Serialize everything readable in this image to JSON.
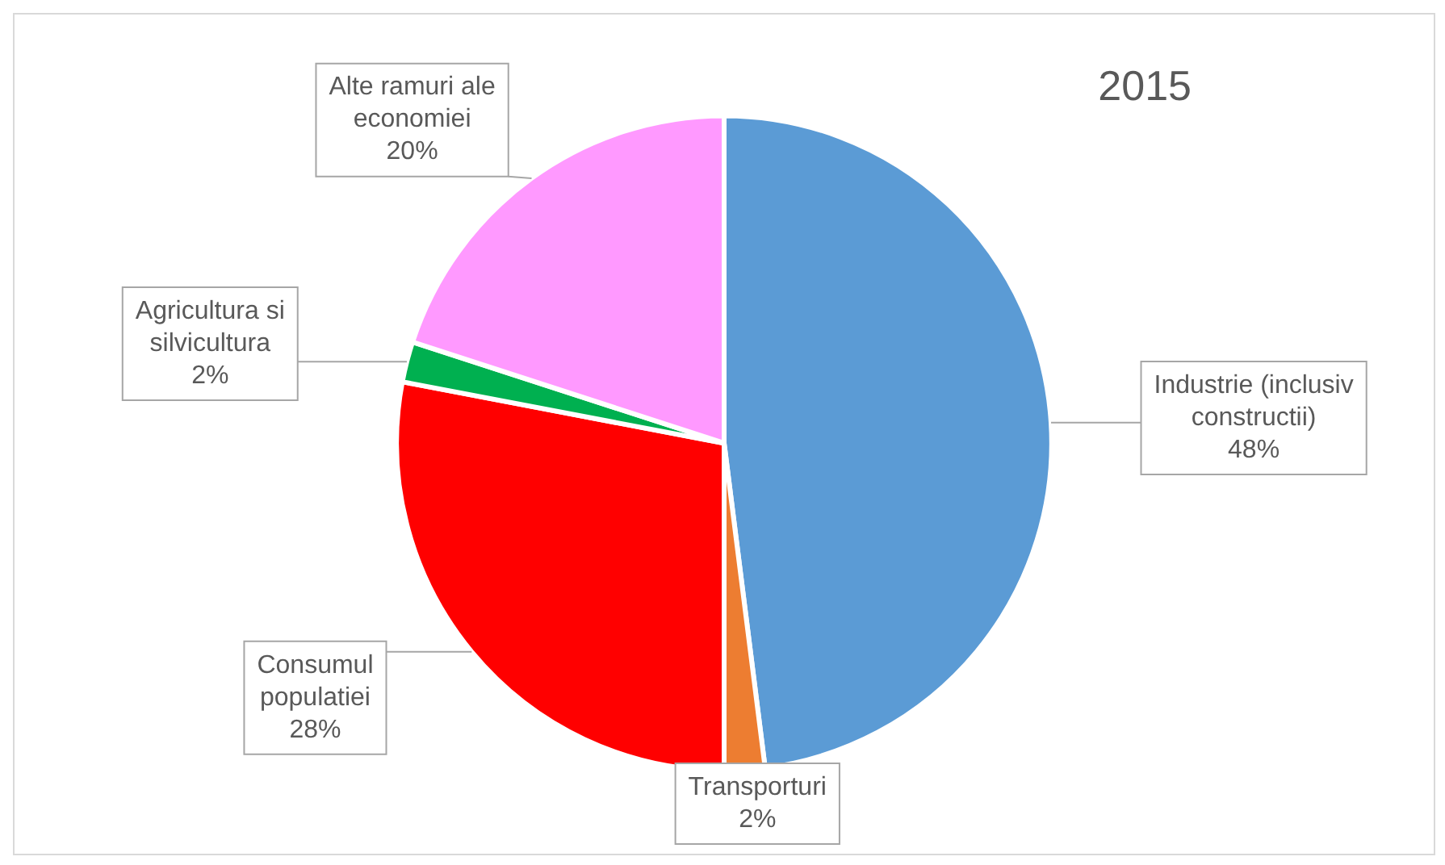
{
  "chart_data": {
    "type": "pie",
    "title": "2015",
    "categories": [
      "Industrie (inclusiv constructii)",
      "Transporturi",
      "Consumul populatiei",
      "Agricultura si silvicultura",
      "Alte ramuri ale economiei"
    ],
    "values": [
      48,
      2,
      28,
      2,
      20
    ],
    "colors": [
      "#5b9bd5",
      "#ed7d31",
      "#ff0000",
      "#00b050",
      "#ff99ff"
    ],
    "value_labels": [
      "48%",
      "2%",
      "28%",
      "2%",
      "20%"
    ],
    "legend": false
  }
}
